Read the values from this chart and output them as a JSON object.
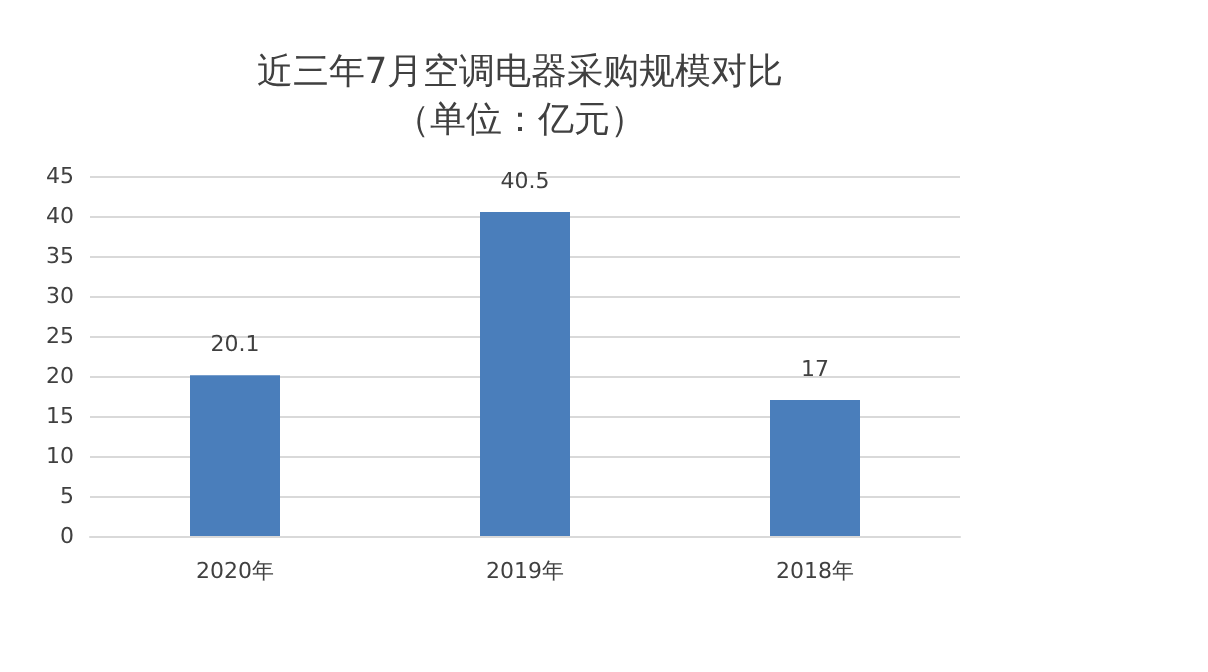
{
  "chart_data": {
    "type": "bar",
    "title": "近三年7月空调电器采购规模对比",
    "subtitle": "（单位：亿元）",
    "categories": [
      "2020年",
      "2019年",
      "2018年"
    ],
    "values": [
      20.1,
      40.5,
      17
    ],
    "color": "#4a7ebb",
    "ylim": [
      0,
      45
    ],
    "yticks": [
      0,
      5,
      10,
      15,
      20,
      25,
      30,
      35,
      40,
      45
    ],
    "grid": "y",
    "data_labels": true
  }
}
